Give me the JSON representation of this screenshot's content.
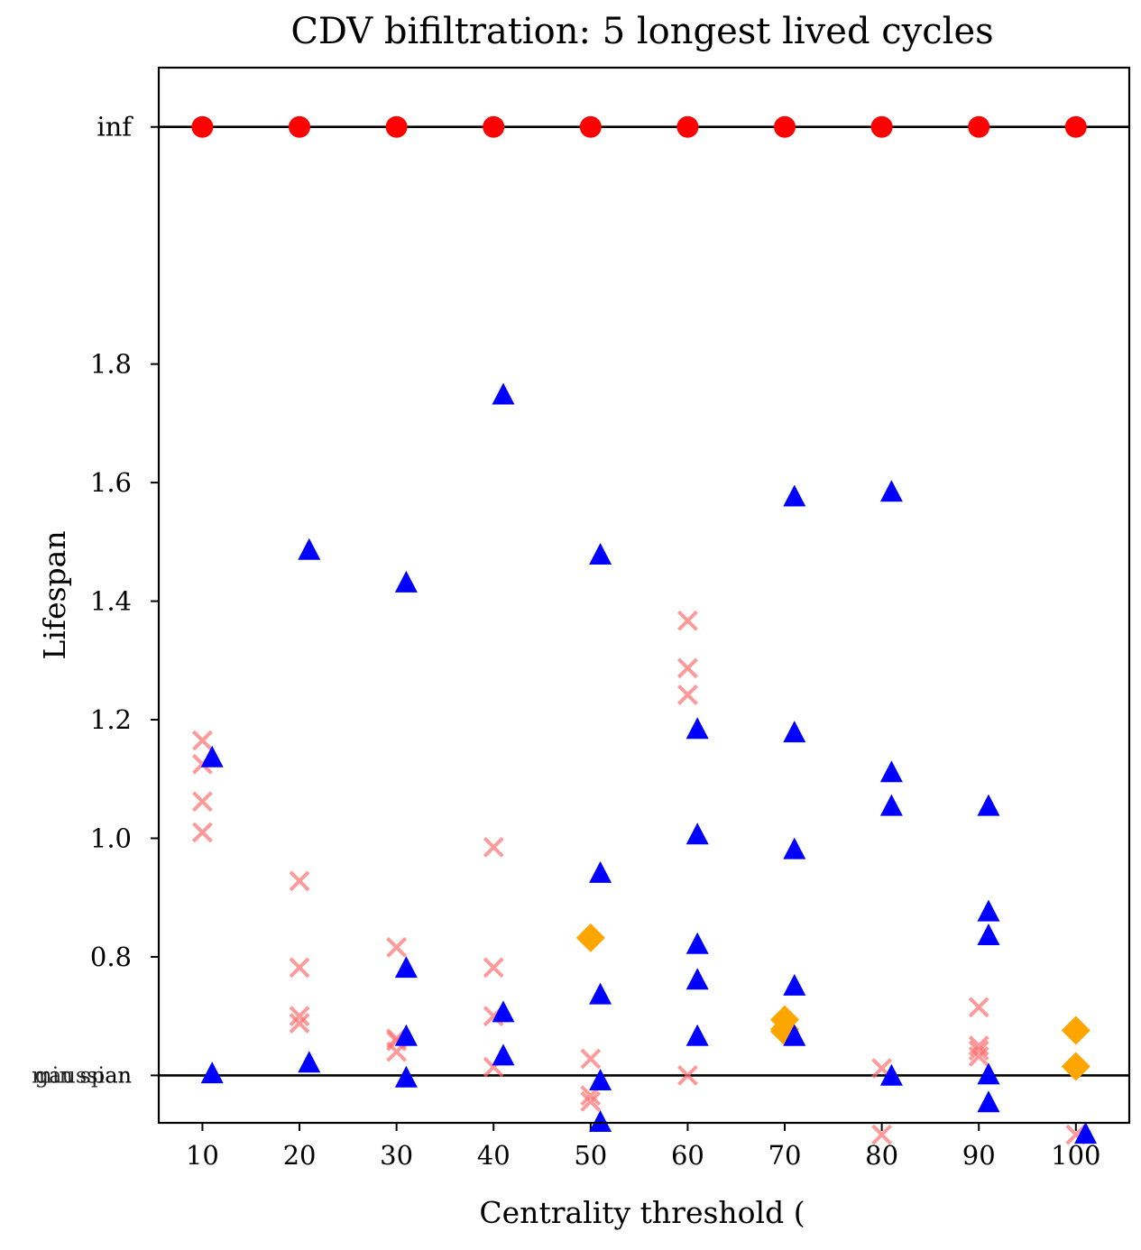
{
  "chart_data": {
    "type": "scatter",
    "title": "CDV bifiltration: 5 longest lived cycles",
    "xlabel": "Centrality threshold (",
    "ylabel": "Lifespan",
    "xlim": [
      5.5,
      105.5
    ],
    "ylim": [
      0.52,
      2.3
    ],
    "x_ticks": [
      10,
      20,
      30,
      40,
      50,
      60,
      70,
      80,
      90,
      100
    ],
    "y_ticks": [
      {
        "value": 0.8,
        "label": "0.8"
      },
      {
        "value": 1.0,
        "label": "1.0"
      },
      {
        "value": 1.2,
        "label": "1.2"
      },
      {
        "value": 1.4,
        "label": "1.4"
      },
      {
        "value": 1.6,
        "label": "1.6"
      },
      {
        "value": 1.8,
        "label": "1.8"
      }
    ],
    "reference_lines": [
      {
        "name": "inf",
        "value": 2.2,
        "label": "inf"
      },
      {
        "name": "min-span",
        "value": 0.6,
        "labels": [
          "gaussian",
          "min span"
        ]
      }
    ],
    "series": [
      {
        "name": "infinite",
        "marker": "circle",
        "color": "#ff0000",
        "points": [
          [
            10,
            2.2
          ],
          [
            20,
            2.2
          ],
          [
            30,
            2.2
          ],
          [
            40,
            2.2
          ],
          [
            50,
            2.2
          ],
          [
            60,
            2.2
          ],
          [
            70,
            2.2
          ],
          [
            80,
            2.2
          ],
          [
            90,
            2.2
          ],
          [
            100,
            2.2
          ]
        ]
      },
      {
        "name": "cross",
        "marker": "x",
        "color": "#ff7070",
        "opacity": 0.7,
        "points": [
          [
            10,
            1.165
          ],
          [
            10,
            1.125
          ],
          [
            10,
            1.062
          ],
          [
            10,
            1.01
          ],
          [
            20,
            0.928
          ],
          [
            20,
            0.782
          ],
          [
            20,
            0.7
          ],
          [
            20,
            0.688
          ],
          [
            30,
            0.816
          ],
          [
            30,
            0.662
          ],
          [
            30,
            0.658
          ],
          [
            30,
            0.64
          ],
          [
            40,
            0.985
          ],
          [
            40,
            0.782
          ],
          [
            40,
            0.7
          ],
          [
            40,
            0.614
          ],
          [
            50,
            0.628
          ],
          [
            50,
            0.566
          ],
          [
            50,
            0.556
          ],
          [
            60,
            1.367
          ],
          [
            60,
            1.287
          ],
          [
            60,
            1.242
          ],
          [
            60,
            0.6
          ],
          [
            80,
            0.612
          ],
          [
            80,
            0.5
          ],
          [
            90,
            0.715
          ],
          [
            90,
            0.65
          ],
          [
            90,
            0.642
          ],
          [
            90,
            0.632
          ],
          [
            100,
            0.5
          ]
        ]
      },
      {
        "name": "diamond",
        "marker": "diamond",
        "color": "#ffa500",
        "points": [
          [
            50,
            0.832
          ],
          [
            70,
            0.694
          ],
          [
            70,
            0.678
          ],
          [
            70,
            0.674
          ],
          [
            100,
            0.676
          ],
          [
            100,
            0.615
          ]
        ]
      },
      {
        "name": "triangle",
        "marker": "triangle",
        "color": "#0000ff",
        "points": [
          [
            11,
            1.135
          ],
          [
            11,
            0.602
          ],
          [
            21,
            1.485
          ],
          [
            21,
            0.62
          ],
          [
            31,
            1.43
          ],
          [
            31,
            0.78
          ],
          [
            31,
            0.665
          ],
          [
            31,
            0.595
          ],
          [
            41,
            1.747
          ],
          [
            41,
            0.705
          ],
          [
            41,
            0.632
          ],
          [
            51,
            1.477
          ],
          [
            51,
            0.94
          ],
          [
            51,
            0.735
          ],
          [
            51,
            0.59
          ],
          [
            51,
            0.52
          ],
          [
            61,
            1.183
          ],
          [
            61,
            1.005
          ],
          [
            61,
            0.82
          ],
          [
            61,
            0.76
          ],
          [
            61,
            0.665
          ],
          [
            71,
            1.575
          ],
          [
            71,
            1.177
          ],
          [
            71,
            0.98
          ],
          [
            71,
            0.75
          ],
          [
            71,
            0.665
          ],
          [
            81,
            1.583
          ],
          [
            81,
            1.11
          ],
          [
            81,
            1.053
          ],
          [
            81,
            0.598
          ],
          [
            91,
            1.053
          ],
          [
            91,
            0.875
          ],
          [
            91,
            0.835
          ],
          [
            91,
            0.6
          ],
          [
            91,
            0.553
          ],
          [
            101,
            0.5
          ]
        ]
      }
    ]
  }
}
